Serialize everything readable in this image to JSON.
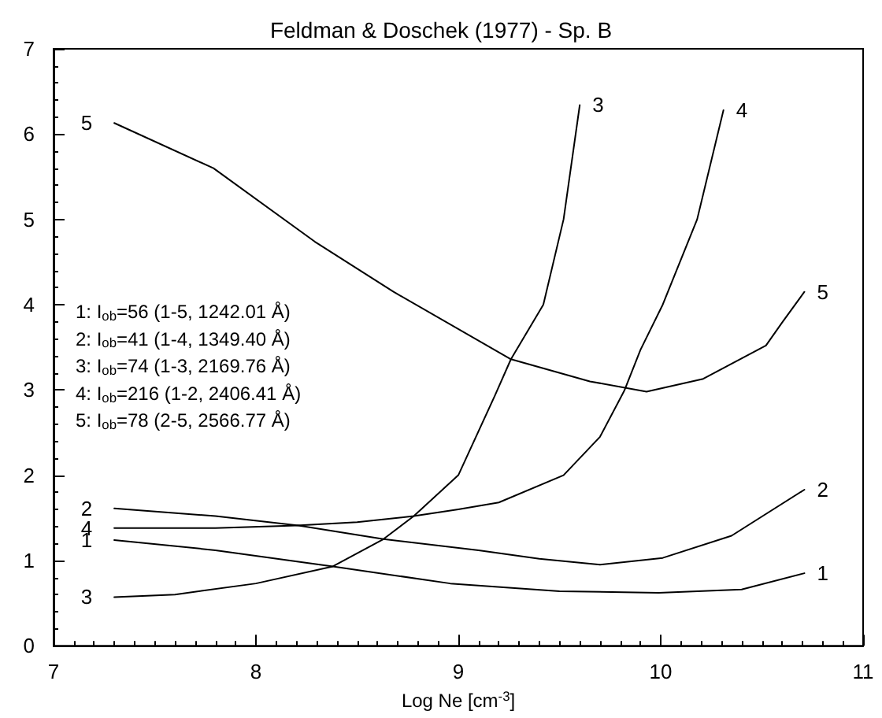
{
  "chart_data": {
    "type": "line",
    "title": "Feldman & Doschek (1977) - Sp. B",
    "xlabel": "Log Ne [cm$^{-3}$]",
    "xlim": [
      7,
      11
    ],
    "xticks": [
      7,
      8,
      9,
      10,
      11
    ],
    "ylim": [
      0,
      7
    ],
    "yticks": [
      0,
      1,
      2,
      3,
      4,
      5,
      6,
      7
    ],
    "grid": false,
    "legend": false,
    "marker": "none",
    "line_style": "solid",
    "annotations": [
      "1: I$_{ob}$=56 (1-5, 1242.01 Å)",
      "2: I$_{ob}$=41 (1-4, 1349.40 Å)",
      "3: I$_{ob}$=74 (1-3, 2169.76 Å)",
      "4: I$_{ob}$=216 (1-2, 2406.41 Å)",
      "5: I$_{ob}$=78 (2-5, 2566.77 Å)"
    ],
    "series": [
      {
        "name": "1",
        "color": "#000000",
        "x": [
          7.3,
          7.8,
          8.38,
          8.96,
          9.5,
          9.99,
          10.4,
          10.71
        ],
        "values": [
          1.24,
          1.12,
          0.93,
          0.73,
          0.64,
          0.62,
          0.66,
          0.85
        ]
      },
      {
        "name": "2",
        "color": "#000000",
        "x": [
          7.3,
          7.8,
          8.21,
          8.63,
          9.1,
          9.4,
          9.7,
          10.01,
          10.35,
          10.71
        ],
        "values": [
          1.61,
          1.52,
          1.41,
          1.25,
          1.12,
          1.02,
          0.95,
          1.03,
          1.29,
          1.83
        ]
      },
      {
        "name": "3",
        "color": "#000000",
        "x": [
          7.3,
          7.6,
          8.0,
          8.38,
          8.63,
          8.78,
          9.0,
          9.18,
          9.26,
          9.42,
          9.52,
          9.6
        ],
        "values": [
          0.57,
          0.6,
          0.73,
          0.93,
          1.25,
          1.52,
          2.0,
          2.93,
          3.36,
          4.0,
          5.0,
          6.34
        ]
      },
      {
        "name": "4",
        "color": "#000000",
        "x": [
          7.3,
          7.8,
          8.2,
          8.5,
          8.78,
          9.0,
          9.2,
          9.52,
          9.7,
          9.82,
          9.9,
          10.01,
          10.18,
          10.31
        ],
        "values": [
          1.38,
          1.38,
          1.41,
          1.45,
          1.52,
          1.6,
          1.68,
          2.0,
          2.45,
          2.99,
          3.47,
          4.0,
          5.0,
          6.28
        ]
      },
      {
        "name": "5",
        "color": "#000000",
        "x": [
          7.3,
          7.79,
          8.29,
          8.68,
          9.26,
          9.65,
          9.93,
          10.21,
          10.52,
          10.6,
          10.71
        ],
        "values": [
          6.13,
          5.6,
          4.74,
          4.15,
          3.36,
          3.1,
          2.98,
          3.13,
          3.52,
          3.79,
          4.15
        ]
      }
    ]
  }
}
